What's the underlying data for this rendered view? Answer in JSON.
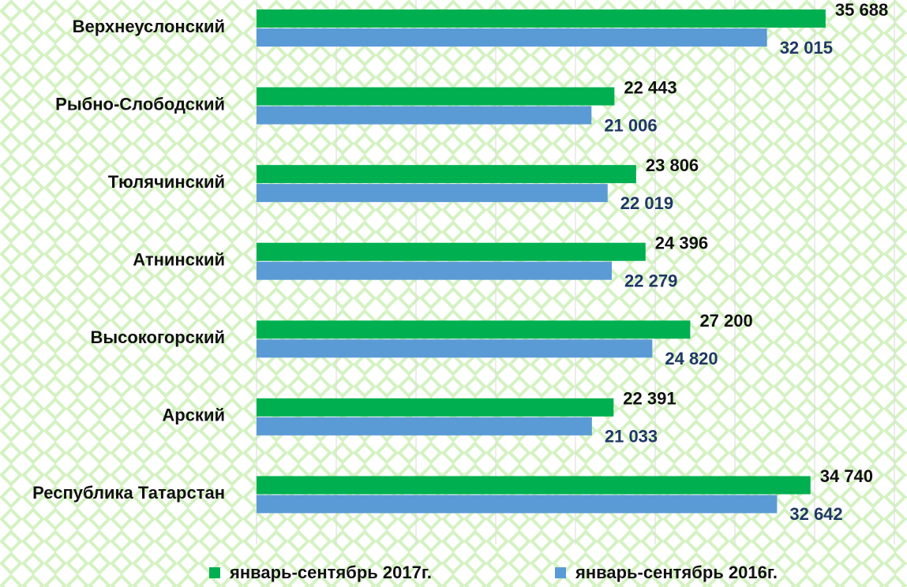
{
  "chart_data": {
    "type": "hbar",
    "categories": [
      "Верхнеуслонский",
      "Рыбно-Слободский",
      "Тюлячинский",
      "Атнинский",
      "Высокогорский",
      "Арский",
      "Республика Татарстан"
    ],
    "series": [
      {
        "name": "январь-сентябрь 2017г.",
        "color": "#00b050",
        "label_color": "#111111",
        "values": [
          35688,
          22443,
          23806,
          24396,
          27200,
          22391,
          34740
        ],
        "value_labels": [
          "35 688",
          "22 443",
          "23 806",
          "24 396",
          "27 200",
          "22 391",
          "34 740"
        ]
      },
      {
        "name": "январь-сентябрь 2016г.",
        "color": "#5b9bd5",
        "label_color": "#1f3864",
        "values": [
          32015,
          21006,
          22019,
          22279,
          24820,
          21033,
          32642
        ],
        "value_labels": [
          "32 015",
          "21 006",
          "22 019",
          "22 279",
          "24 820",
          "21 033",
          "32 642"
        ]
      }
    ],
    "xlim": [
      0,
      40000
    ],
    "xticks": [
      0,
      5000,
      10000,
      15000,
      20000,
      25000,
      30000,
      35000,
      40000
    ],
    "grid": true
  }
}
